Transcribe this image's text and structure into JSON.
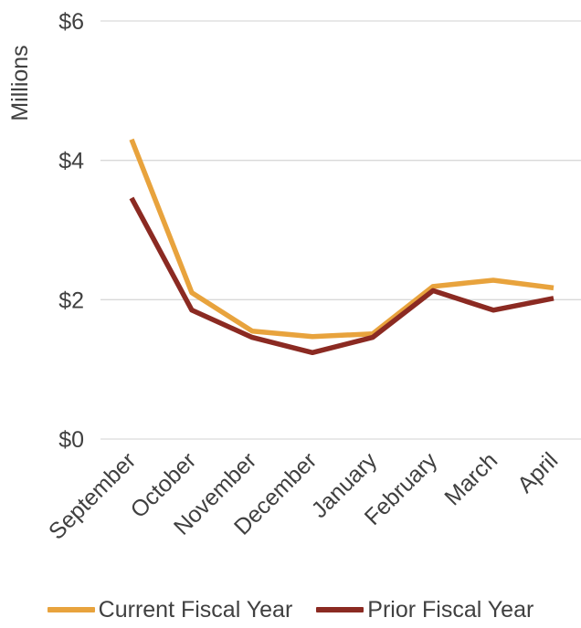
{
  "chart_data": {
    "type": "line",
    "title": "",
    "xlabel": "",
    "ylabel": "Millions",
    "categories": [
      "September",
      "October",
      "November",
      "December",
      "January",
      "February",
      "March",
      "April"
    ],
    "yticks": [
      "$0",
      "$2",
      "$4",
      "$6"
    ],
    "ylim": [
      0,
      6
    ],
    "grid": true,
    "legend_position": "bottom",
    "series": [
      {
        "name": "Current Fiscal Year",
        "color": "#E8A33D",
        "values": [
          4.3,
          2.1,
          1.55,
          1.47,
          1.51,
          2.19,
          2.28,
          2.17
        ]
      },
      {
        "name": "Prior Fiscal Year",
        "color": "#8B2A22",
        "values": [
          3.46,
          1.85,
          1.46,
          1.24,
          1.46,
          2.13,
          1.85,
          2.02
        ]
      }
    ]
  }
}
